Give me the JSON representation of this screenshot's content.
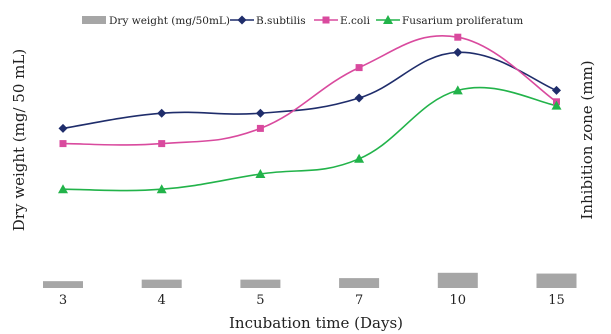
{
  "chart_data": {
    "type": "line",
    "title": "",
    "xlabel": "Incubation time (Days)",
    "ylabel_left": "Dry weight (mg/ 50 mL)",
    "ylabel_right": "Inhibition  zone (mm)",
    "categories": [
      "3",
      "4",
      "5",
      "7",
      "10",
      "15"
    ],
    "ylim": [
      0,
      35
    ],
    "grid": false,
    "legend_position": "top",
    "bars": {
      "name": "Dry weight (mg/50mL)",
      "color": "#a6a6a6",
      "values": [
        0.9,
        1.1,
        1.1,
        1.3,
        2.0,
        1.9
      ]
    },
    "series": [
      {
        "name": "B.subtilis",
        "color": "#1f2d6b",
        "marker": "diamond",
        "values": [
          21,
          23,
          23,
          25,
          31,
          26
        ]
      },
      {
        "name": "E.coli",
        "color": "#d94a9e",
        "marker": "square",
        "values": [
          19,
          19,
          21,
          29,
          33,
          24.5
        ]
      },
      {
        "name": "Fusarium proliferatum",
        "color": "#22b34a",
        "marker": "triangle",
        "values": [
          13,
          13,
          15,
          17,
          26,
          24
        ]
      }
    ]
  }
}
